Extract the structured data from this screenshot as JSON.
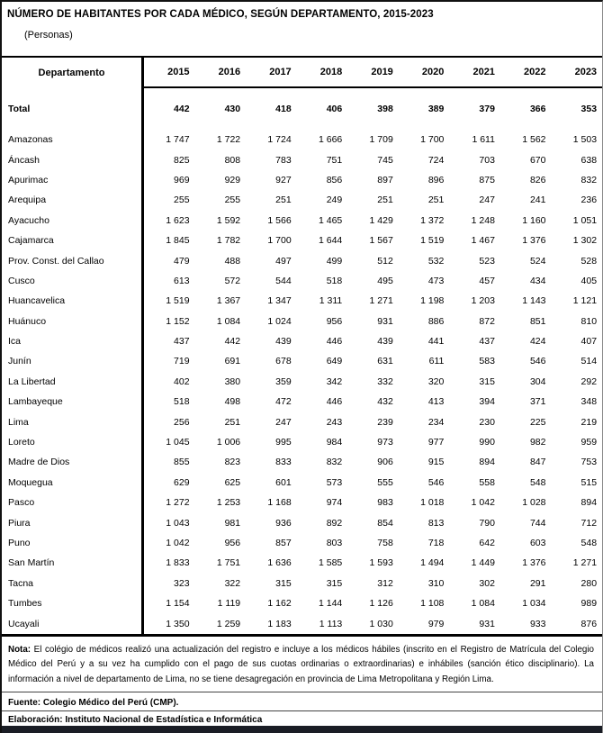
{
  "title": "NÚMERO DE HABITANTES POR CADA MÉDICO, SEGÚN DEPARTAMENTO, 2015-2023",
  "subtitle": "(Personas)",
  "table": {
    "department_header": "Departamento",
    "years": [
      "2015",
      "2016",
      "2017",
      "2018",
      "2019",
      "2020",
      "2021",
      "2022",
      "2023"
    ],
    "total": {
      "label": "Total",
      "values": [
        "442",
        "430",
        "418",
        "406",
        "398",
        "389",
        "379",
        "366",
        "353"
      ]
    },
    "rows": [
      {
        "label": "Amazonas",
        "values": [
          "1 747",
          "1 722",
          "1 724",
          "1 666",
          "1 709",
          "1 700",
          "1 611",
          "1 562",
          "1 503"
        ]
      },
      {
        "label": "Áncash",
        "values": [
          "825",
          "808",
          "783",
          "751",
          "745",
          "724",
          "703",
          "670",
          "638"
        ]
      },
      {
        "label": "Apurimac",
        "values": [
          "969",
          "929",
          "927",
          "856",
          "897",
          "896",
          "875",
          "826",
          "832"
        ]
      },
      {
        "label": "Arequipa",
        "values": [
          "255",
          "255",
          "251",
          "249",
          "251",
          "251",
          "247",
          "241",
          "236"
        ]
      },
      {
        "label": "Ayacucho",
        "values": [
          "1 623",
          "1 592",
          "1 566",
          "1 465",
          "1 429",
          "1 372",
          "1 248",
          "1 160",
          "1 051"
        ]
      },
      {
        "label": "Cajamarca",
        "values": [
          "1 845",
          "1 782",
          "1 700",
          "1 644",
          "1 567",
          "1 519",
          "1 467",
          "1 376",
          "1 302"
        ]
      },
      {
        "label": "Prov. Const. del Callao",
        "values": [
          "479",
          "488",
          "497",
          "499",
          "512",
          "532",
          "523",
          "524",
          "528"
        ]
      },
      {
        "label": "Cusco",
        "values": [
          "613",
          "572",
          "544",
          "518",
          "495",
          "473",
          "457",
          "434",
          "405"
        ]
      },
      {
        "label": "Huancavelica",
        "values": [
          "1 519",
          "1 367",
          "1 347",
          "1 311",
          "1 271",
          "1 198",
          "1 203",
          "1 143",
          "1 121"
        ]
      },
      {
        "label": "Huánuco",
        "values": [
          "1 152",
          "1 084",
          "1 024",
          "956",
          "931",
          "886",
          "872",
          "851",
          "810"
        ]
      },
      {
        "label": "Ica",
        "values": [
          "437",
          "442",
          "439",
          "446",
          "439",
          "441",
          "437",
          "424",
          "407"
        ]
      },
      {
        "label": "Junín",
        "values": [
          "719",
          "691",
          "678",
          "649",
          "631",
          "611",
          "583",
          "546",
          "514"
        ]
      },
      {
        "label": "La Libertad",
        "values": [
          "402",
          "380",
          "359",
          "342",
          "332",
          "320",
          "315",
          "304",
          "292"
        ]
      },
      {
        "label": "Lambayeque",
        "values": [
          "518",
          "498",
          "472",
          "446",
          "432",
          "413",
          "394",
          "371",
          "348"
        ]
      },
      {
        "label": "Lima",
        "values": [
          "256",
          "251",
          "247",
          "243",
          "239",
          "234",
          "230",
          "225",
          "219"
        ]
      },
      {
        "label": "Loreto",
        "values": [
          "1 045",
          "1 006",
          "995",
          "984",
          "973",
          "977",
          "990",
          "982",
          "959"
        ]
      },
      {
        "label": "Madre de Dios",
        "values": [
          "855",
          "823",
          "833",
          "832",
          "906",
          "915",
          "894",
          "847",
          "753"
        ]
      },
      {
        "label": "Moquegua",
        "values": [
          "629",
          "625",
          "601",
          "573",
          "555",
          "546",
          "558",
          "548",
          "515"
        ]
      },
      {
        "label": "Pasco",
        "values": [
          "1 272",
          "1 253",
          "1 168",
          "974",
          "983",
          "1 018",
          "1 042",
          "1 028",
          "894"
        ]
      },
      {
        "label": "Piura",
        "values": [
          "1 043",
          "981",
          "936",
          "892",
          "854",
          "813",
          "790",
          "744",
          "712"
        ]
      },
      {
        "label": "Puno",
        "values": [
          "1 042",
          "956",
          "857",
          "803",
          "758",
          "718",
          "642",
          "603",
          "548"
        ]
      },
      {
        "label": "San Martín",
        "values": [
          "1 833",
          "1 751",
          "1 636",
          "1 585",
          "1 593",
          "1 494",
          "1 449",
          "1 376",
          "1 271"
        ]
      },
      {
        "label": "Tacna",
        "values": [
          "323",
          "322",
          "315",
          "315",
          "312",
          "310",
          "302",
          "291",
          "280"
        ]
      },
      {
        "label": "Tumbes",
        "values": [
          "1 154",
          "1 119",
          "1 162",
          "1 144",
          "1 126",
          "1 108",
          "1 084",
          "1 034",
          "989"
        ]
      },
      {
        "label": "Ucayali",
        "values": [
          "1 350",
          "1 259",
          "1 183",
          "1 113",
          "1 030",
          "979",
          "931",
          "933",
          "876"
        ]
      }
    ]
  },
  "footer": {
    "note_label": "Nota:",
    "note_text": " El colégio de médicos realizó una actualización del registro e incluye a los médicos hábiles (inscrito en el Registro de Matrícula del Colegio Médico del Perú y a su vez ha cumplido con el pago de sus cuotas ordinarias o extraordinarias) e inhábiles (sanción ético disciplinario). La información a nivel de departamento de Lima, no se tiene desagregación en provincia de Lima Metropolitana y Región Lima.",
    "source_label": "Fuente:",
    "source_text": "  Colegio Médico del Perú (CMP).",
    "elaboration_label": "Elaboración:",
    "elaboration_text": " Instituto Nacional de Estadística e Informática"
  }
}
